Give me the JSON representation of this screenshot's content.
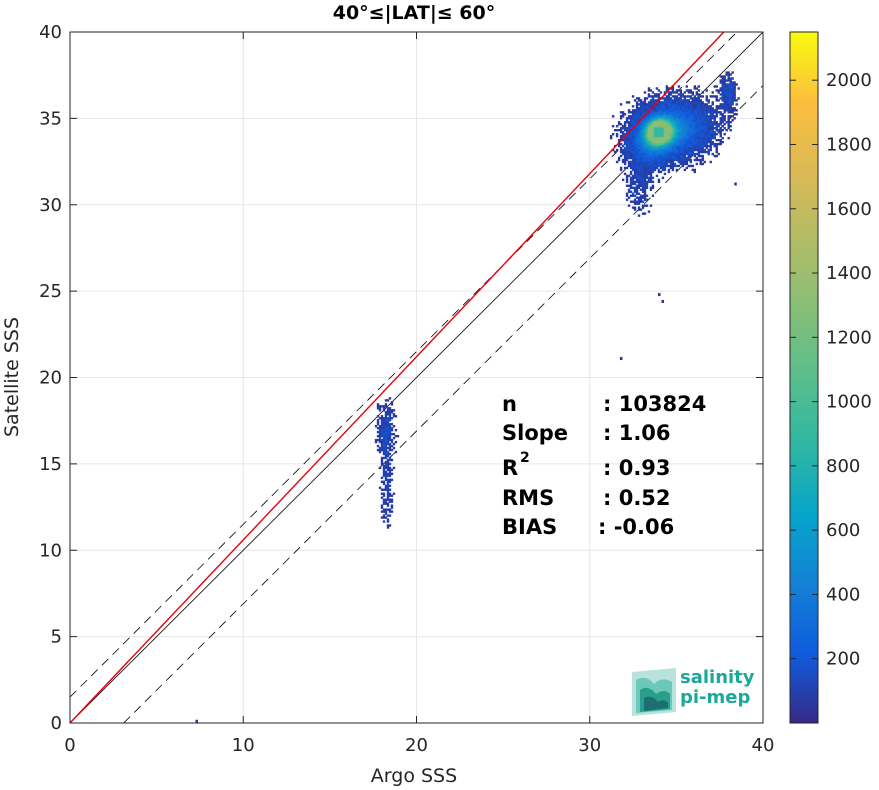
{
  "chart_data": {
    "type": "heatmap",
    "title": "40°≤|LAT|≤ 60°",
    "xlabel": "Argo SSS",
    "ylabel": "Satellite SSS",
    "xlim": [
      0,
      40
    ],
    "ylim": [
      0,
      40
    ],
    "x_ticks": [
      0,
      10,
      20,
      30,
      40
    ],
    "y_ticks": [
      0,
      5,
      10,
      15,
      20,
      25,
      30,
      35,
      40
    ],
    "grid": true,
    "colorbar": {
      "range": [
        0,
        2150
      ],
      "ticks": [
        200,
        400,
        600,
        800,
        1000,
        1200,
        1400,
        1600,
        1800,
        2000
      ],
      "colormap": "parula"
    },
    "reference_lines": {
      "one_to_one": {
        "slope": 1,
        "intercept": 0,
        "color": "#000000",
        "style": "solid"
      },
      "upper_bound": {
        "slope": 1,
        "intercept": 1.5,
        "color": "#000000",
        "style": "dashed"
      },
      "lower_bound": {
        "slope": 1,
        "intercept": -3.1,
        "color": "#000000",
        "style": "dashed"
      },
      "fit": {
        "slope": 1.06,
        "intercept": 0,
        "color": "#e8000b",
        "style": "solid"
      }
    },
    "density_clusters": [
      {
        "x": 35,
        "y": 34.5,
        "sx": 1.6,
        "sy": 1.2,
        "weight": 1.0
      },
      {
        "x": 33.5,
        "y": 33.6,
        "sx": 1.0,
        "sy": 1.0,
        "weight": 0.7
      },
      {
        "x": 34,
        "y": 34.3,
        "sx": 0.5,
        "sy": 0.5,
        "weight": 1.0
      },
      {
        "x": 38,
        "y": 36.5,
        "sx": 0.35,
        "sy": 0.8,
        "weight": 0.5
      },
      {
        "x": 32.8,
        "y": 31.0,
        "sx": 0.6,
        "sy": 1.2,
        "weight": 0.35
      },
      {
        "x": 18.2,
        "y": 17.0,
        "sx": 0.4,
        "sy": 1.2,
        "weight": 0.45
      },
      {
        "x": 18.3,
        "y": 13.5,
        "sx": 0.25,
        "sy": 1.6,
        "weight": 0.35
      }
    ],
    "outliers": [
      [
        7.3,
        0.1
      ],
      [
        34,
        24.8
      ],
      [
        34.2,
        24.4
      ],
      [
        31.8,
        21.1
      ],
      [
        38.4,
        31.2
      ]
    ],
    "stats": [
      {
        "label": "n",
        "value": ": 103824"
      },
      {
        "label": "Slope",
        "value": ": 1.06"
      },
      {
        "label": "R",
        "value": ": 0.93"
      },
      {
        "label": "RMS",
        "value": ": 0.52"
      },
      {
        "label": "BIAS",
        "value": ": -0.06"
      }
    ]
  },
  "logo": {
    "line1": "salinity",
    "line2": "pi-mep"
  },
  "colors": {
    "grid": "#e6e6e6",
    "fit_line": "#e8000b",
    "logo": "#1aa89a"
  }
}
